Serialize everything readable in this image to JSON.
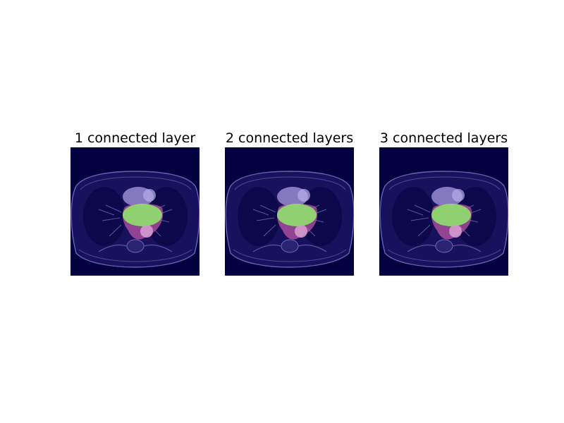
{
  "panels": [
    {
      "title": "1 connected layer"
    },
    {
      "title": "2 connected layers"
    },
    {
      "title": "3 connected layers"
    }
  ],
  "colors": {
    "background": "#03003f",
    "body_tissue": "#7c73c4",
    "organ_overlay": "#a89ce0",
    "heart_segmentation": "#8fdc6e",
    "vessel_segmentation": "#c45aa8",
    "aorta_segmentation": "#d69ad0"
  }
}
